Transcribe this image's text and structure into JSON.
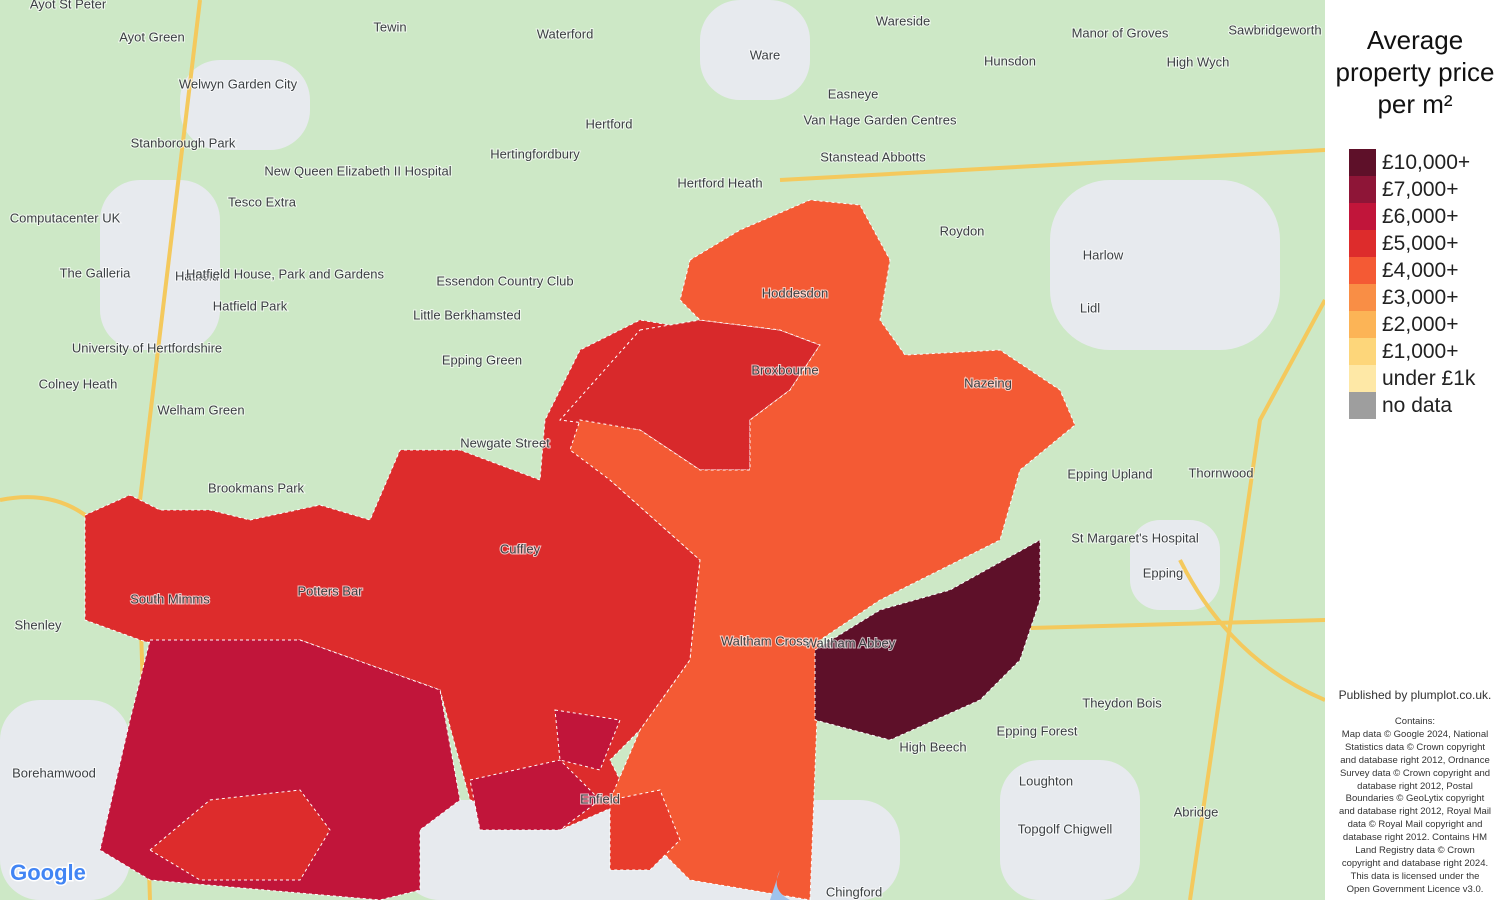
{
  "legend": {
    "title": "Average property price per m²",
    "items": [
      {
        "label": "£10,000+",
        "color": "#5e1029"
      },
      {
        "label": "£7,000+",
        "color": "#8e1537"
      },
      {
        "label": "£6,000+",
        "color": "#c1153a"
      },
      {
        "label": "£5,000+",
        "color": "#dd2c2c"
      },
      {
        "label": "£4,000+",
        "color": "#f45a34"
      },
      {
        "label": "£3,000+",
        "color": "#f98e45"
      },
      {
        "label": "£2,000+",
        "color": "#fcb456"
      },
      {
        "label": "£1,000+",
        "color": "#fdd67a"
      },
      {
        "label": "under £1k",
        "color": "#fee8a6"
      },
      {
        "label": "no data",
        "color": "#9e9e9e"
      }
    ]
  },
  "credit": "Published by plumplot.co.uk.",
  "attribution": [
    "Contains:",
    "Map data © Google 2024, National",
    "Statistics data © Crown copyright",
    "and database right 2012, Ordnance",
    "Survey data © Crown copyright and",
    "database right 2012, Postal",
    "Boundaries © GeoLytix copyright",
    "and database right 2012, Royal Mail",
    "data © Royal Mail copyright and",
    "database right 2012. Contains HM",
    "Land Registry data © Crown",
    "copyright and database right 2024.",
    "This data is licensed under the",
    "Open Government Licence v3.0."
  ],
  "google": "Google",
  "places": [
    "Ayot St Peter",
    "Tewin",
    "Waterford",
    "Ware",
    "Wareside",
    "Hunsdon",
    "Manor of Groves",
    "Sawbridgeworth",
    "High Wych",
    "Ayot Green",
    "Welwyn Garden City",
    "Easneye",
    "Hertford",
    "Hertingfordbury",
    "Van Hage Garden Centres",
    "Stanstead Abbotts",
    "Hertford Heath",
    "Roydon",
    "Harlow",
    "Stanborough Park",
    "New Queen Elizabeth II Hospital",
    "Tesco Extra",
    "Computacenter UK",
    "The Galleria",
    "Hatfield",
    "Hatfield House, Park and Gardens",
    "Hatfield Park",
    "Essendon Country Club",
    "Little Berkhamsted",
    "University of Hertfordshire",
    "Epping Green",
    "Colney Heath",
    "Welham Green",
    "Newgate Street",
    "Brookmans Park",
    "Epping Upland",
    "Thornwood",
    "St Margaret's Hospital",
    "Epping",
    "Shenley",
    "Theydon Bois",
    "High Beech",
    "Epping Forest",
    "Borehamwood",
    "Loughton",
    "Abridge",
    "Topgolf Chigwell",
    "Chingford",
    "Lidl",
    "Nazeing",
    "Broxbourne",
    "Hoddesdon",
    "Cuffley",
    "South Mimms",
    "Potters Bar",
    "Waltham Abbey",
    "Waltham Cross",
    "Enfield"
  ]
}
